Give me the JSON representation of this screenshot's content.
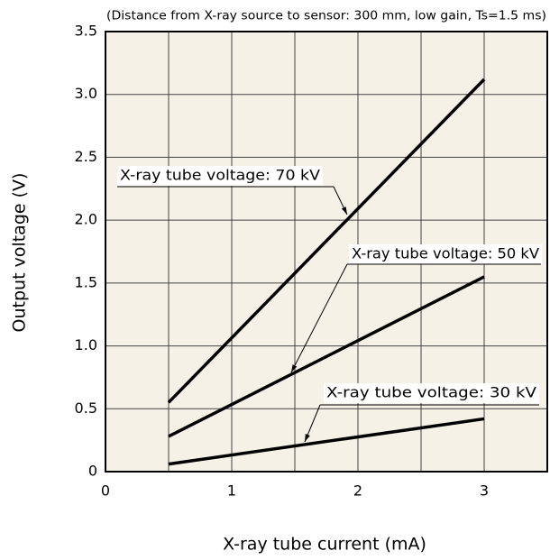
{
  "chart_data": {
    "type": "line",
    "subtitle": "(Distance from X-ray source to sensor: 300 mm, low gain, Ts=1.5 ms)",
    "xlabel": "X-ray tube current (mA)",
    "ylabel": "Output voltage (V)",
    "x": [
      0.5,
      3
    ],
    "series": [
      {
        "name": "X-ray tube voltage: 70 kV",
        "color": "#000000",
        "values": [
          0.55,
          3.12
        ]
      },
      {
        "name": "X-ray tube voltage: 50 kV",
        "color": "#000000",
        "values": [
          0.28,
          1.55
        ]
      },
      {
        "name": "X-ray tube voltage: 30 kV",
        "color": "#000000",
        "values": [
          0.06,
          0.42
        ]
      }
    ],
    "xlim": [
      0,
      3.5
    ],
    "xticks": [
      0,
      1,
      2,
      3
    ],
    "xminorticks": [
      0.5,
      1.5,
      2.5,
      3.5
    ],
    "ylim": [
      0,
      3.5
    ],
    "yticks": [
      0,
      0.5,
      {
        "value": 1,
        "label": "1.0"
      },
      1.5,
      {
        "value": 2,
        "label": "2.0"
      },
      2.5,
      {
        "value": 3,
        "label": "3.0"
      },
      3.5
    ],
    "grid": true,
    "background": "#f6f1e7"
  }
}
